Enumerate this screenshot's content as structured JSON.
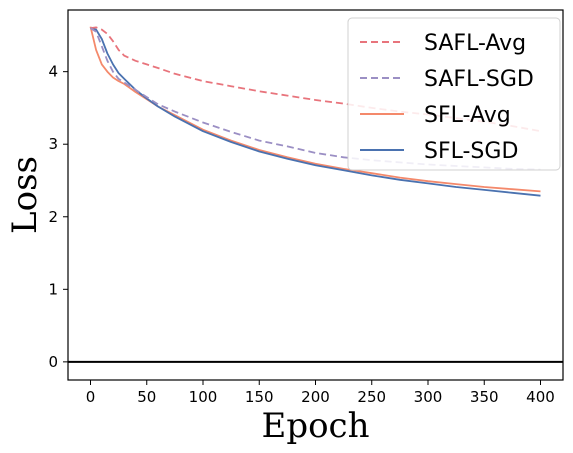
{
  "chart_data": {
    "type": "line",
    "xlabel": "Epoch",
    "ylabel": "Loss",
    "xlim": [
      -20,
      420
    ],
    "ylim": [
      -0.25,
      4.85
    ],
    "x_ticks": [
      0,
      50,
      100,
      150,
      200,
      250,
      300,
      350,
      400
    ],
    "y_ticks": [
      0,
      1,
      2,
      3,
      4
    ],
    "x_tick_labels": [
      "0",
      "50",
      "100",
      "150",
      "200",
      "250",
      "300",
      "350",
      "400"
    ],
    "y_tick_labels": [
      "0",
      "1",
      "2",
      "3",
      "4"
    ],
    "grid": false,
    "legend_position": "top-right",
    "hline": 0,
    "series": [
      {
        "name": "SAFL-Avg",
        "color": "#e8747c",
        "dash": "dashed",
        "x": [
          0,
          5,
          10,
          15,
          20,
          25,
          30,
          40,
          50,
          60,
          75,
          100,
          125,
          150,
          175,
          200,
          225,
          250,
          275,
          300,
          325,
          350,
          375,
          400
        ],
        "y": [
          4.6,
          4.61,
          4.58,
          4.52,
          4.42,
          4.3,
          4.22,
          4.15,
          4.1,
          4.05,
          3.97,
          3.87,
          3.8,
          3.73,
          3.67,
          3.61,
          3.56,
          3.5,
          3.45,
          3.41,
          3.36,
          3.31,
          3.25,
          3.18
        ]
      },
      {
        "name": "SAFL-SGD",
        "color": "#9b8fc4",
        "dash": "dashed",
        "x": [
          0,
          5,
          10,
          15,
          20,
          25,
          30,
          40,
          50,
          60,
          75,
          100,
          125,
          150,
          175,
          200,
          225,
          250,
          275,
          300,
          325,
          350,
          375,
          400
        ],
        "y": [
          4.6,
          4.55,
          4.35,
          4.15,
          4.0,
          3.9,
          3.85,
          3.75,
          3.65,
          3.55,
          3.45,
          3.3,
          3.17,
          3.05,
          2.97,
          2.88,
          2.82,
          2.78,
          2.75,
          2.72,
          2.7,
          2.68,
          2.66,
          2.65
        ]
      },
      {
        "name": "SFL-Avg",
        "color": "#f4896b",
        "dash": "solid",
        "x": [
          0,
          5,
          10,
          15,
          20,
          25,
          30,
          40,
          50,
          60,
          75,
          100,
          125,
          150,
          175,
          200,
          225,
          250,
          275,
          300,
          325,
          350,
          375,
          400
        ],
        "y": [
          4.62,
          4.3,
          4.1,
          4.0,
          3.92,
          3.87,
          3.83,
          3.72,
          3.62,
          3.52,
          3.4,
          3.2,
          3.05,
          2.92,
          2.82,
          2.73,
          2.66,
          2.6,
          2.54,
          2.49,
          2.45,
          2.41,
          2.38,
          2.35
        ]
      },
      {
        "name": "SFL-SGD",
        "color": "#4a72b0",
        "dash": "solid",
        "x": [
          0,
          5,
          10,
          15,
          20,
          25,
          30,
          40,
          50,
          60,
          75,
          100,
          125,
          150,
          175,
          200,
          225,
          250,
          275,
          300,
          325,
          350,
          375,
          400
        ],
        "y": [
          4.6,
          4.58,
          4.45,
          4.25,
          4.1,
          3.98,
          3.9,
          3.75,
          3.63,
          3.52,
          3.38,
          3.18,
          3.03,
          2.9,
          2.8,
          2.71,
          2.64,
          2.57,
          2.51,
          2.46,
          2.41,
          2.37,
          2.33,
          2.29
        ]
      }
    ]
  }
}
